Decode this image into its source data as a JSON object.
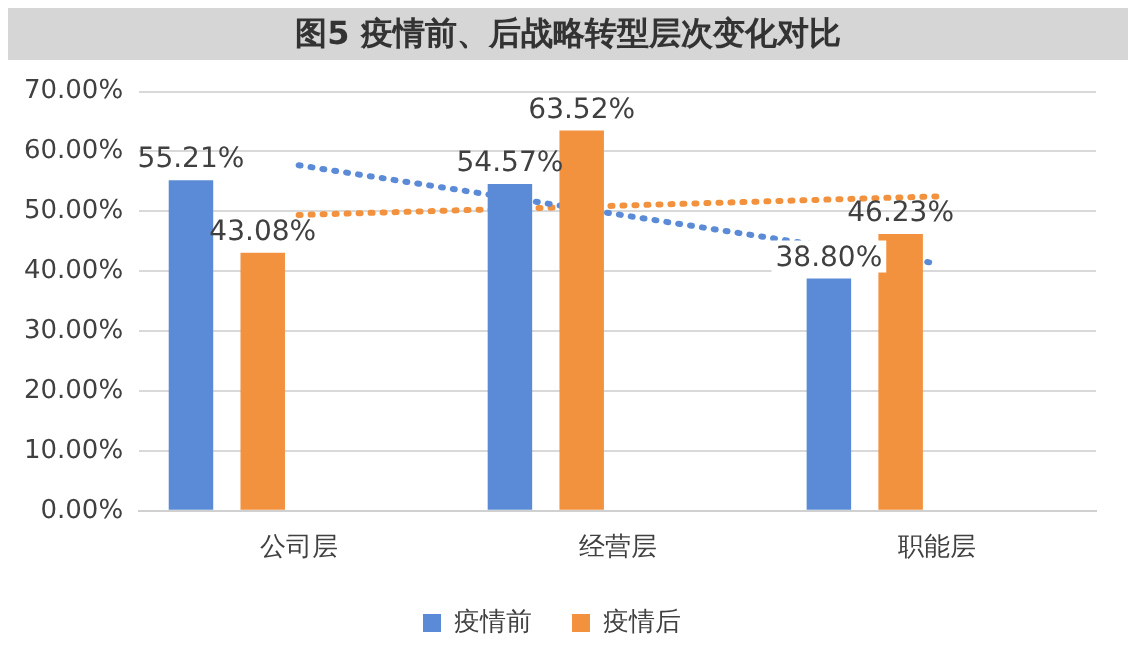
{
  "chart_data": {
    "type": "bar",
    "title": "图5  疫情前、后战略转型层次变化对比",
    "categories": [
      "公司层",
      "经营层",
      "职能层"
    ],
    "series": [
      {
        "name": "疫情前",
        "color": "#5b8bd6",
        "values": [
          55.21,
          54.57,
          38.8
        ],
        "value_labels": [
          "55.21%",
          "54.57%",
          "38.80%"
        ]
      },
      {
        "name": "疫情后",
        "color": "#f2923e",
        "values": [
          43.08,
          63.52,
          46.23
        ],
        "value_labels": [
          "43.08%",
          "63.52%",
          "46.23%"
        ]
      },
      {
        "type": "line",
        "color": "#5b8bd6",
        "line_style": "dotted",
        "marker": "none",
        "x": [
          "公司层",
          "职能层"
        ],
        "values": [
          57.7,
          41.3
        ]
      },
      {
        "type": "line",
        "color": "#f2923e",
        "line_style": "dotted",
        "marker": "none",
        "x": [
          "公司层",
          "职能层"
        ],
        "values": [
          49.4,
          52.5
        ]
      }
    ],
    "ylim": [
      0,
      70
    ],
    "yticks": [
      {
        "value": 0,
        "label": "0.00%"
      },
      {
        "value": 10,
        "label": "10.00%"
      },
      {
        "value": 20,
        "label": "20.00%"
      },
      {
        "value": 30,
        "label": "30.00%"
      },
      {
        "value": 40,
        "label": "40.00%"
      },
      {
        "value": 50,
        "label": "50.00%"
      },
      {
        "value": 60,
        "label": "60.00%"
      },
      {
        "value": 70,
        "label": "70.00%"
      }
    ],
    "grid": "y",
    "legend": "bottom"
  }
}
